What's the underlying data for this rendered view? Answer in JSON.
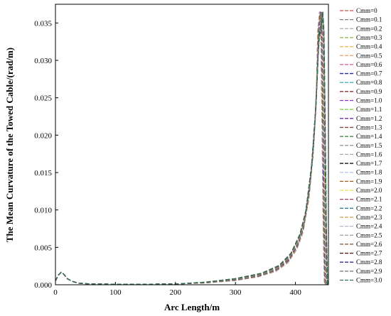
{
  "chart_data": {
    "type": "line",
    "xlabel": "Arc Length/m",
    "ylabel": "The Mean Curvature of the Towed Cable/(rad/m)",
    "xlim": [
      0,
      455
    ],
    "ylim": [
      0,
      0.0375
    ],
    "x_ticks": [
      "0",
      "100",
      "200",
      "300",
      "400"
    ],
    "x_tick_values": [
      0,
      100,
      200,
      300,
      400
    ],
    "y_ticks": [
      "0.000",
      "0.005",
      "0.010",
      "0.015",
      "0.020",
      "0.025",
      "0.030",
      "0.035"
    ],
    "y_tick_values": [
      0,
      0.005,
      0.01,
      0.015,
      0.02,
      0.025,
      0.03,
      0.035
    ],
    "grid": false,
    "legend_position": "right",
    "series_labels": [
      "Cmm=0",
      "Cmm=0.1",
      "Cmm=0.2",
      "Cmm=0.3",
      "Cmm=0.4",
      "Cmm=0.5",
      "Cmm=0.6",
      "Cmm=0.7",
      "Cmm=0.8",
      "Cmm=0.9",
      "Cmm=1.0",
      "Cmm=1.1",
      "Cmm=1.2",
      "Cmm=1.3",
      "Cmm=1.4",
      "Cmm=1.5",
      "Cmm=1.6",
      "Cmm=1.7",
      "Cmm=1.8",
      "Cmm=1.9",
      "Cmm=2.0",
      "Cmm=2.1",
      "Cmm=2.2",
      "Cmm=2.3",
      "Cmm=2.4",
      "Cmm=2.5",
      "Cmm=2.6",
      "Cmm=2.7",
      "Cmm=2.8",
      "Cmm=2.9",
      "Cmm=3.0"
    ],
    "series_colors": [
      "#c0504d",
      "#7f7f7f",
      "#b0b0b0",
      "#9bbb59",
      "#f2b463",
      "#e6a070",
      "#d45f9a",
      "#1f2f9f",
      "#4bacc6",
      "#7a2020",
      "#a030c0",
      "#70d040",
      "#6f2f9f",
      "#7f4f3f",
      "#2e7d32",
      "#909090",
      "#a8a8a8",
      "#101010",
      "#c0c8e8",
      "#a06020",
      "#f0e050",
      "#9c4060",
      "#308090",
      "#d4a060",
      "#b0b8d0",
      "#a0a0a0",
      "#7a5030",
      "#552010",
      "#3a2a80",
      "#707070",
      "#2f6f4f"
    ],
    "x": [
      0,
      5,
      10,
      15,
      20,
      30,
      40,
      60,
      100,
      150,
      200,
      250,
      300,
      340,
      370,
      390,
      405,
      415,
      425,
      432,
      437,
      440,
      443,
      445,
      447,
      449,
      451
    ],
    "base_y": [
      0.0005,
      0.0013,
      0.0017,
      0.0013,
      0.0008,
      0.0004,
      0.0002,
      0.0001,
      8e-05,
      8e-05,
      0.0001,
      0.0003,
      0.0007,
      0.0013,
      0.0022,
      0.0036,
      0.0058,
      0.0085,
      0.014,
      0.021,
      0.029,
      0.034,
      0.0365,
      0.034,
      0.022,
      0.008,
      0.0
    ]
  }
}
